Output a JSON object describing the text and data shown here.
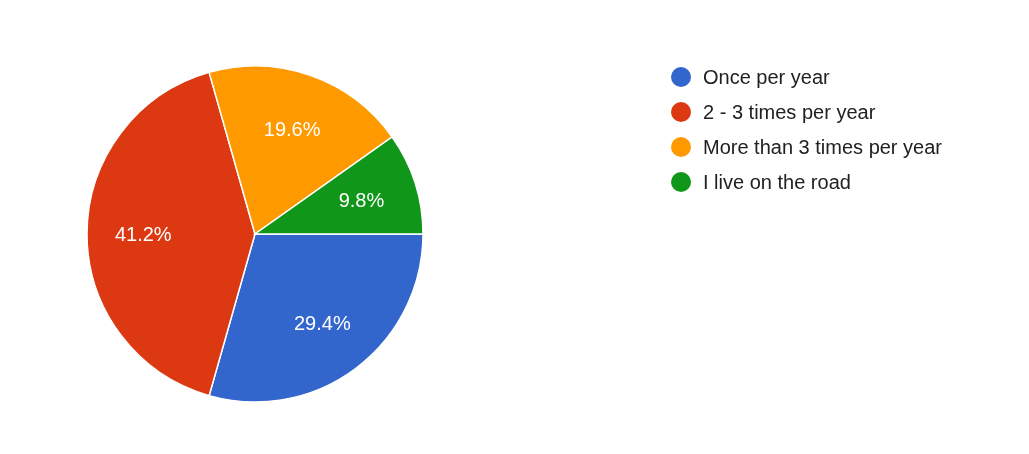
{
  "chart_data": {
    "type": "pie",
    "categories": [
      "Once per year",
      "2 - 3 times per year",
      "More than 3 times per year",
      "I live on the road"
    ],
    "values": [
      29.4,
      41.2,
      19.6,
      9.8
    ],
    "colors": [
      "#3366cc",
      "#dc3912",
      "#ff9900",
      "#109618"
    ],
    "value_labels": [
      "29.4%",
      "41.2%",
      "19.6%",
      "9.8%"
    ],
    "legend": "top right"
  }
}
